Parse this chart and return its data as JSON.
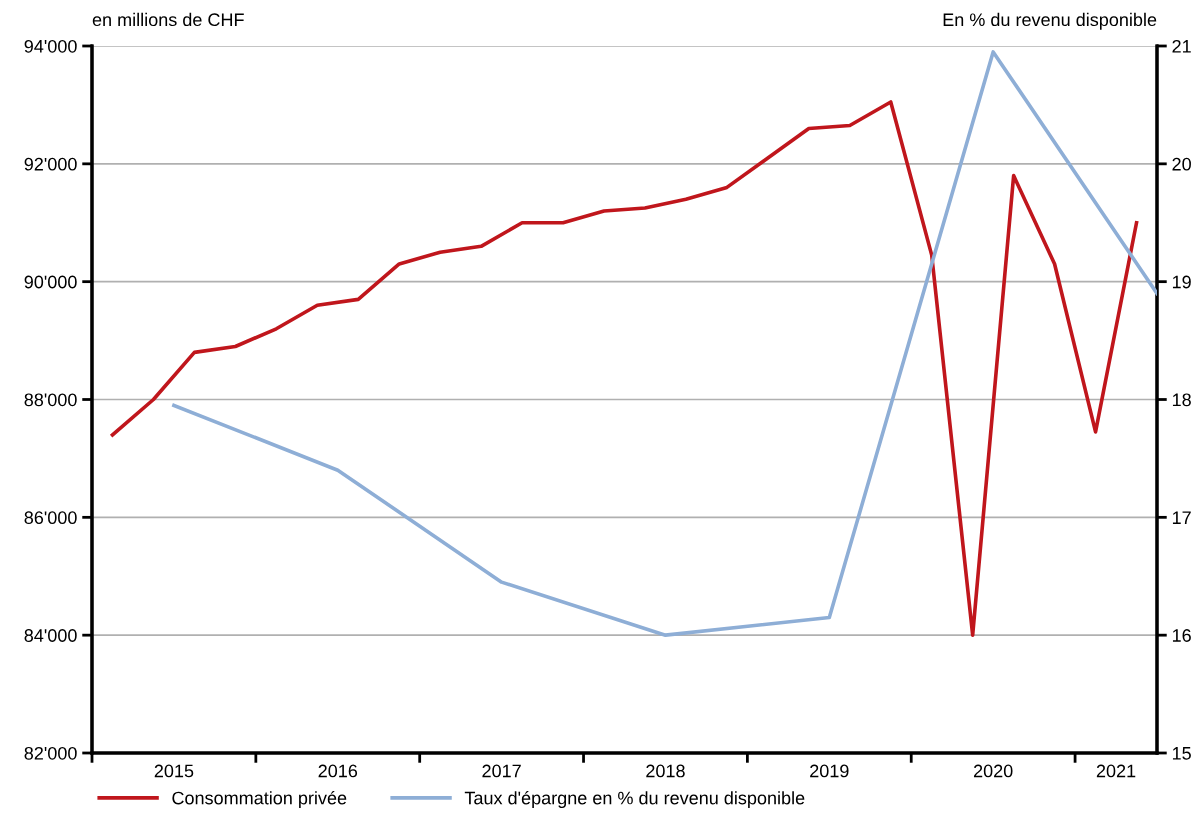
{
  "chart_data": {
    "type": "line",
    "ylabel": "en millions de CHF",
    "y2label": "En % du revenu disponible",
    "xlim": [
      2015,
      2021.5
    ],
    "xticks": [
      {
        "value": 2015,
        "label": null
      },
      {
        "value": 2016,
        "label": null
      },
      {
        "value": 2017,
        "label": null
      },
      {
        "value": 2018,
        "label": null
      },
      {
        "value": 2019,
        "label": null
      },
      {
        "value": 2020,
        "label": null
      },
      {
        "value": 2021,
        "label": null
      },
      {
        "value": 2015.5,
        "label": "2015"
      },
      {
        "value": 2016.5,
        "label": "2016"
      },
      {
        "value": 2017.5,
        "label": "2017"
      },
      {
        "value": 2018.5,
        "label": "2018"
      },
      {
        "value": 2019.5,
        "label": "2019"
      },
      {
        "value": 2020.5,
        "label": "2020"
      },
      {
        "value": 2021.25,
        "label": "2021"
      }
    ],
    "ylim": [
      82000,
      94000
    ],
    "yticks": [
      {
        "value": 82000,
        "label": "82'000"
      },
      {
        "value": 84000,
        "label": "84'000"
      },
      {
        "value": 86000,
        "label": "86'000"
      },
      {
        "value": 88000,
        "label": "88'000"
      },
      {
        "value": 90000,
        "label": "90'000"
      },
      {
        "value": 92000,
        "label": "92'000"
      },
      {
        "value": 94000,
        "label": "94'000"
      }
    ],
    "y2lim": [
      15,
      21
    ],
    "y2ticks": [
      15,
      16,
      17,
      18,
      19,
      20,
      21
    ],
    "grid": "y",
    "legend": "bottom",
    "line_style": "solid",
    "marker": "none",
    "series": [
      {
        "name": "Consommation privée",
        "color": "#c0161c",
        "x": [
          2015.125,
          2015.375,
          2015.625,
          2015.875,
          2016.125,
          2016.375,
          2016.625,
          2016.875,
          2017.125,
          2017.375,
          2017.625,
          2017.875,
          2018.125,
          2018.375,
          2018.625,
          2018.875,
          2019.125,
          2019.375,
          2019.625,
          2019.875,
          2020.125,
          2020.375,
          2020.625,
          2020.875,
          2021.125,
          2021.375
        ],
        "values": [
          87400,
          88000,
          88800,
          88900,
          89200,
          89600,
          89700,
          90300,
          90500,
          90600,
          91000,
          91000,
          91200,
          91250,
          91400,
          91600,
          92100,
          92600,
          92650,
          93050,
          90450,
          84000,
          91800,
          90300,
          87450,
          91000
        ]
      },
      {
        "name": "Taux d'épargne en % du revenu disponible",
        "color": "#8eaed6",
        "axis": "y2",
        "x": [
          2015.5,
          2016.5,
          2017.5,
          2018.5,
          2019.5,
          2020.5,
          2021.5
        ],
        "values": [
          17.95,
          17.4,
          16.45,
          16.0,
          16.15,
          20.95,
          18.9
        ]
      }
    ]
  }
}
